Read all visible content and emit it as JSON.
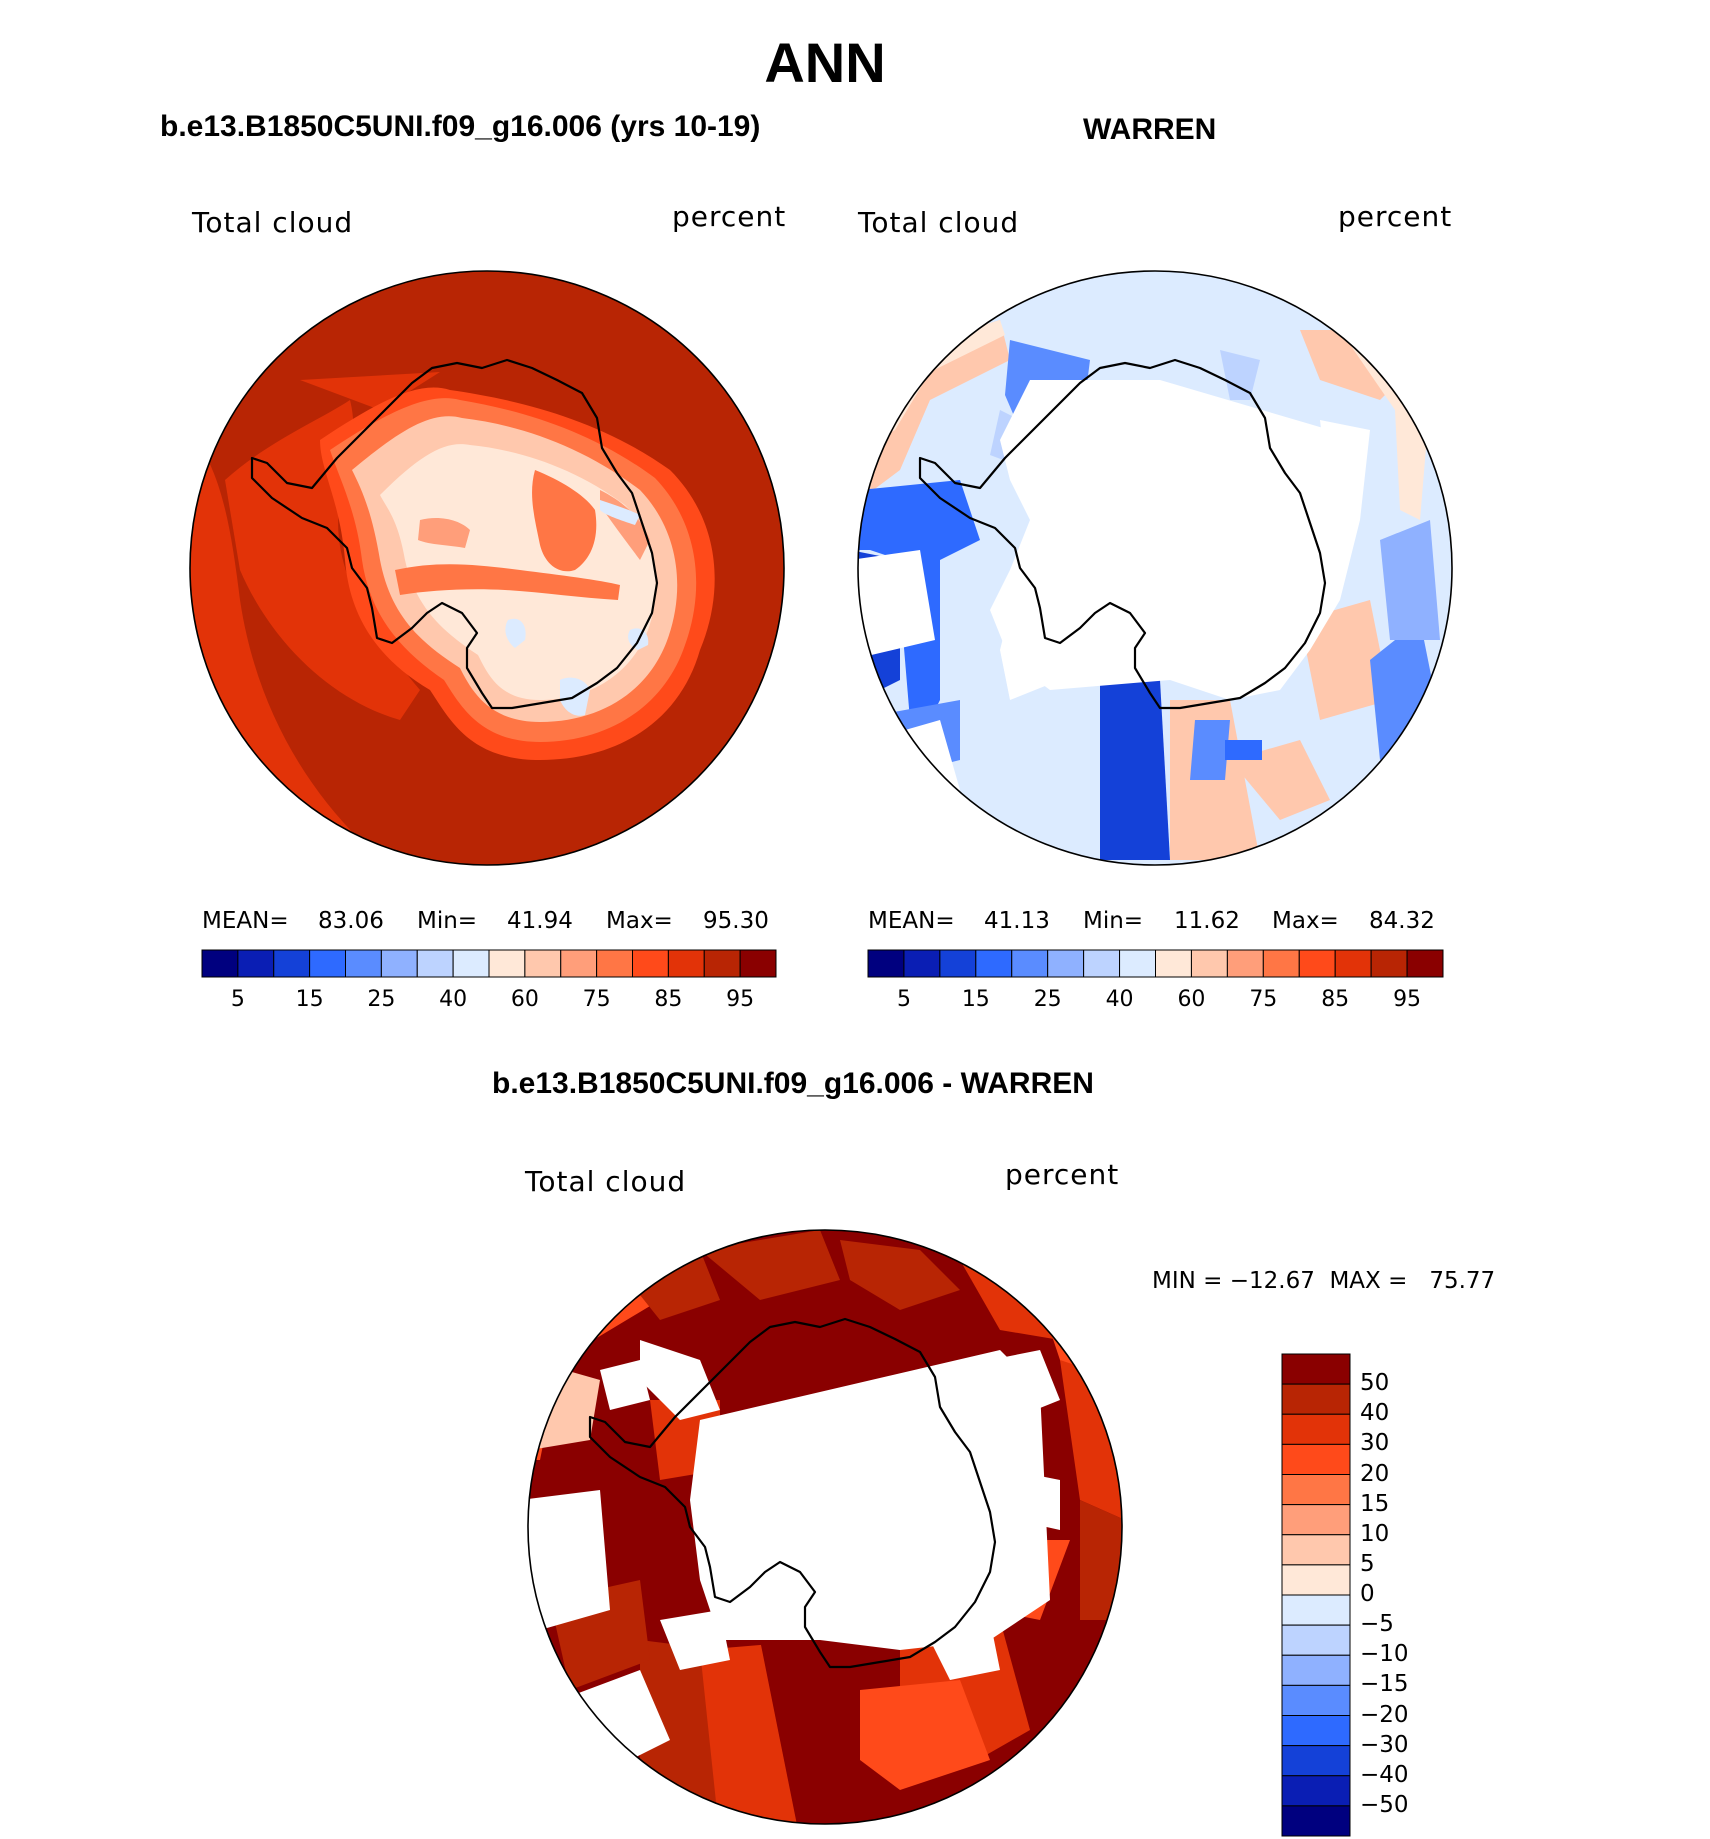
{
  "figure": {
    "title": "ANN",
    "panel_a_title": "b.e13.B1850C5UNI.f09_g16.006 (yrs 10-19)",
    "panel_b_title": "WARREN",
    "panel_c_title": "b.e13.B1850C5UNI.f09_g16.006 - WARREN"
  },
  "colors": {
    "main_scale": [
      "#00007f",
      "#0a1eb4",
      "#1441d8",
      "#2e6aff",
      "#5a8cff",
      "#8fb1ff",
      "#bdd3ff",
      "#dcebff",
      "#ffe8d8",
      "#ffc8ad",
      "#ff9e7a",
      "#ff7645",
      "#ff4a1a",
      "#e23308",
      "#b82504",
      "#8a0000"
    ],
    "diff_scale": [
      "#00007f",
      "#0a1eb4",
      "#1441d8",
      "#2e6aff",
      "#5a8cff",
      "#8fb1ff",
      "#bdd3ff",
      "#dcebff",
      "#ffe8d8",
      "#ffc8ad",
      "#ff9e7a",
      "#ff7645",
      "#ff4a1a",
      "#e23308",
      "#b82504",
      "#8a0000"
    ]
  },
  "chart_data": [
    {
      "type": "heatmap",
      "projection": "south polar stereographic",
      "label_left": "Total cloud",
      "label_right": "percent",
      "stats": {
        "mean_label": "MEAN=",
        "mean": "83.06",
        "min_label": "Min=",
        "min": "41.94",
        "max_label": "Max=",
        "max": "95.30"
      },
      "colorbar_levels": [
        "5",
        "15",
        "25",
        "40",
        "60",
        "75",
        "85",
        "95"
      ]
    },
    {
      "type": "heatmap",
      "projection": "south polar stereographic",
      "label_left": "Total cloud",
      "label_right": "percent",
      "stats": {
        "mean_label": "MEAN=",
        "mean": "41.13",
        "min_label": "Min=",
        "min": "11.62",
        "max_label": "Max=",
        "max": "84.32"
      },
      "colorbar_levels": [
        "5",
        "15",
        "25",
        "40",
        "60",
        "75",
        "85",
        "95"
      ]
    },
    {
      "type": "heatmap",
      "projection": "south polar stereographic",
      "label_left": "Total cloud",
      "label_right": "percent",
      "minmax": "MIN = −12.67  MAX =   75.77",
      "colorbar_levels": [
        "50",
        "40",
        "30",
        "20",
        "15",
        "10",
        "5",
        "0",
        "−5",
        "−10",
        "−15",
        "−20",
        "−30",
        "−40",
        "−50"
      ]
    }
  ]
}
